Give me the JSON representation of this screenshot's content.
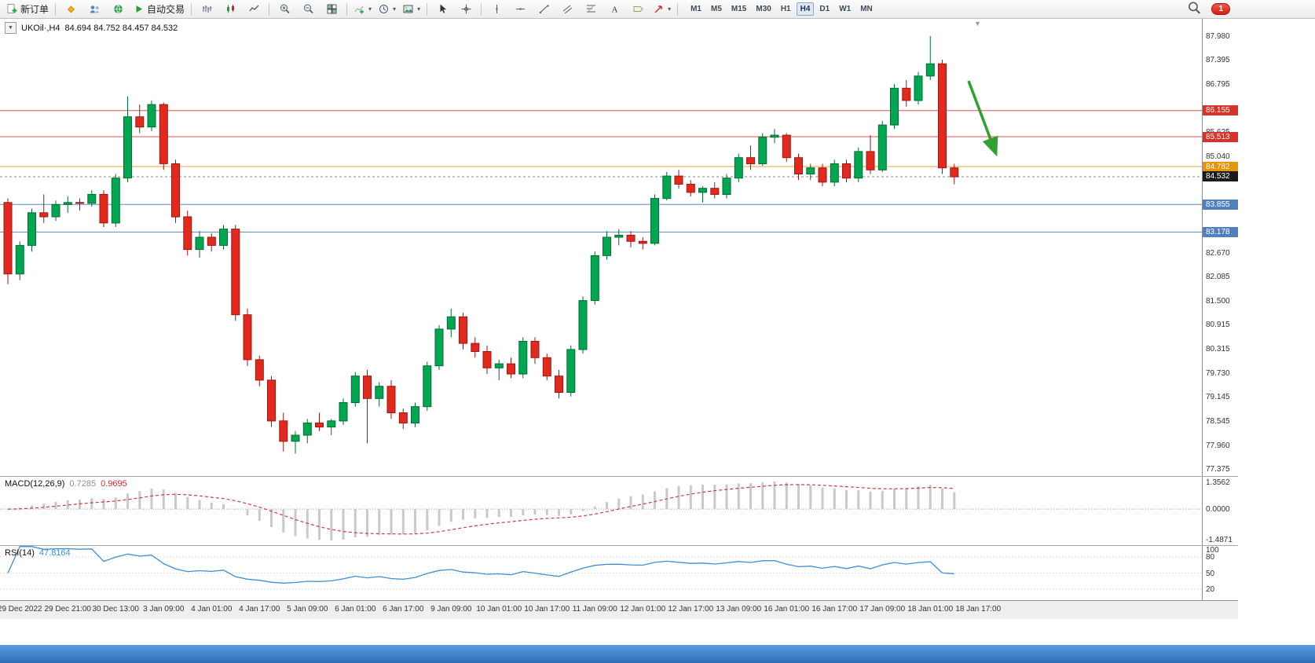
{
  "toolbar": {
    "new_order_label": "新订单",
    "autotrade_label": "自动交易",
    "items": [
      {
        "icon": "new-order",
        "name": "new-order-button",
        "label": "新订单"
      },
      {
        "sep": true
      },
      {
        "icon": "mql-diamond",
        "name": "mql5-button"
      },
      {
        "icon": "profiles",
        "name": "profiles-button"
      },
      {
        "icon": "community",
        "name": "community-button"
      },
      {
        "icon": "play",
        "name": "autotrade-button",
        "label": "自动交易"
      },
      {
        "sep": true
      },
      {
        "icon": "chart-bars",
        "name": "bar-chart-button"
      },
      {
        "icon": "chart-candles",
        "name": "candle-chart-button"
      },
      {
        "icon": "chart-line",
        "name": "line-chart-button"
      },
      {
        "sep": true
      },
      {
        "icon": "zoom-in",
        "name": "zoom-in-button"
      },
      {
        "icon": "zoom-out",
        "name": "zoom-out-button"
      },
      {
        "icon": "tile-windows",
        "name": "tile-windows-button"
      },
      {
        "sep": true
      },
      {
        "icon": "indicators",
        "name": "indicators-button",
        "caret": true
      },
      {
        "icon": "clock",
        "name": "periods-button",
        "caret": true
      },
      {
        "icon": "template",
        "name": "templates-button",
        "caret": true
      },
      {
        "sep": true
      },
      {
        "icon": "cursor",
        "name": "cursor-button"
      },
      {
        "icon": "crosshair",
        "name": "crosshair-button"
      },
      {
        "sep": true
      },
      {
        "icon": "vline",
        "name": "vertical-line-button"
      },
      {
        "icon": "hline",
        "name": "horizontal-line-button"
      },
      {
        "icon": "trendline",
        "name": "trendline-button"
      },
      {
        "icon": "channel",
        "name": "channel-button"
      },
      {
        "icon": "fibo",
        "name": "fibonacci-button"
      },
      {
        "icon": "text",
        "name": "text-button"
      },
      {
        "icon": "label",
        "name": "label-button"
      },
      {
        "icon": "arrow-tool",
        "name": "arrows-button",
        "caret": true
      },
      {
        "sep": true
      }
    ],
    "timeframes": [
      "M1",
      "M5",
      "M15",
      "M30",
      "H1",
      "H4",
      "D1",
      "W1",
      "MN"
    ],
    "active_timeframe": "H4",
    "notification_count": "1"
  },
  "chart": {
    "header": {
      "symbol_period": "UKOil·,H4",
      "ohlc": "84.694 84.752 84.457 84.532"
    },
    "price_axis": {
      "ticks": [
        "87.980",
        "87.395",
        "86.795",
        "85.625",
        "85.040",
        "82.670",
        "82.085",
        "81.500",
        "80.915",
        "80.315",
        "79.730",
        "79.145",
        "78.545",
        "77.960",
        "77.375"
      ],
      "badges": [
        {
          "label": "86.155",
          "bg": "#d8332a"
        },
        {
          "label": "85.513",
          "bg": "#d8332a"
        },
        {
          "label": "84.782",
          "bg": "#e8940a"
        },
        {
          "label": "84.532",
          "bg": "#1a1a1a"
        },
        {
          "label": "83.855",
          "bg": "#4f81bd"
        },
        {
          "label": "83.178",
          "bg": "#4f81bd"
        }
      ]
    },
    "levels": [
      {
        "price": 86.155,
        "color": "#e05050",
        "dash": ""
      },
      {
        "price": 85.513,
        "color": "#e05050",
        "dash": ""
      },
      {
        "price": 84.782,
        "color": "#f0a028",
        "dash": ""
      },
      {
        "price": 83.855,
        "color": "#5b8ac5",
        "dash": ""
      },
      {
        "price": 83.178,
        "color": "#5b8ac5",
        "dash": ""
      },
      {
        "price": 84.532,
        "color": "#8a8a8a",
        "dash": "3,3"
      }
    ],
    "arrow": {
      "color": "#2fa12f",
      "from": [
        1233,
        79
      ],
      "to": [
        1268,
        172
      ]
    },
    "indicators": {
      "macd": {
        "label": "MACD(12,26,9)",
        "value_main": "0.7285",
        "value_signal": "0.9695",
        "axis_top": "1.3562",
        "axis_zero": "0.0000",
        "axis_bottom": "-1.4871"
      },
      "rsi": {
        "label": "RSI(14)",
        "value": "47.8164",
        "axis": [
          "100",
          "80",
          "50",
          "20"
        ],
        "levels": [
          80,
          50,
          20
        ]
      }
    },
    "time_axis": [
      "29 Dec 2022",
      "29 Dec 21:00",
      "30 Dec 13:00",
      "3 Jan 09:00",
      "4 Jan 01:00",
      "4 Jan 17:00",
      "5 Jan 09:00",
      "6 Jan 01:00",
      "6 Jan 17:00",
      "9 Jan 09:00",
      "10 Jan 01:00",
      "10 Jan 17:00",
      "11 Jan 09:00",
      "12 Jan 01:00",
      "12 Jan 17:00",
      "13 Jan 09:00",
      "16 Jan 01:00",
      "16 Jan 17:00",
      "17 Jan 09:00",
      "18 Jan 01:00",
      "18 Jan 17:00"
    ]
  },
  "chart_data": {
    "type": "candlestick",
    "symbol": "UKOil",
    "timeframe": "H4",
    "y_range": [
      77.2,
      88.4
    ],
    "current_price": 84.532,
    "horizontal_levels": [
      86.155,
      85.513,
      84.782,
      83.855,
      83.178
    ],
    "ohlc": [
      [
        83.9,
        84.0,
        81.9,
        82.15
      ],
      [
        82.15,
        82.95,
        82.0,
        82.85
      ],
      [
        82.85,
        83.75,
        82.7,
        83.65
      ],
      [
        83.65,
        84.1,
        83.4,
        83.55
      ],
      [
        83.55,
        83.95,
        83.45,
        83.85
      ],
      [
        83.85,
        84.05,
        83.65,
        83.9
      ],
      [
        83.9,
        84.0,
        83.7,
        83.88
      ],
      [
        83.88,
        84.2,
        83.8,
        84.1
      ],
      [
        84.1,
        84.2,
        83.3,
        83.4
      ],
      [
        83.4,
        84.6,
        83.3,
        84.5
      ],
      [
        84.5,
        86.5,
        84.4,
        86.0
      ],
      [
        86.0,
        86.3,
        85.6,
        85.75
      ],
      [
        85.75,
        86.4,
        85.65,
        86.3
      ],
      [
        86.3,
        86.35,
        84.7,
        84.85
      ],
      [
        84.85,
        84.95,
        83.4,
        83.55
      ],
      [
        83.55,
        83.7,
        82.6,
        82.75
      ],
      [
        82.75,
        83.2,
        82.55,
        83.05
      ],
      [
        83.05,
        83.15,
        82.7,
        82.85
      ],
      [
        82.85,
        83.35,
        82.75,
        83.25
      ],
      [
        83.25,
        83.35,
        81.0,
        81.15
      ],
      [
        81.15,
        81.3,
        79.9,
        80.05
      ],
      [
        80.05,
        80.15,
        79.4,
        79.55
      ],
      [
        79.55,
        79.65,
        78.4,
        78.55
      ],
      [
        78.55,
        78.75,
        77.8,
        78.05
      ],
      [
        78.05,
        78.3,
        77.75,
        78.2
      ],
      [
        78.2,
        78.6,
        78.0,
        78.5
      ],
      [
        78.5,
        78.75,
        78.3,
        78.4
      ],
      [
        78.4,
        78.6,
        78.2,
        78.55
      ],
      [
        78.55,
        79.1,
        78.45,
        79.0
      ],
      [
        79.0,
        79.75,
        78.9,
        79.65
      ],
      [
        79.65,
        79.8,
        78.0,
        79.1
      ],
      [
        79.1,
        79.5,
        78.9,
        79.4
      ],
      [
        79.4,
        79.55,
        78.6,
        78.75
      ],
      [
        78.75,
        78.85,
        78.35,
        78.5
      ],
      [
        78.5,
        79.0,
        78.4,
        78.9
      ],
      [
        78.9,
        80.0,
        78.8,
        79.9
      ],
      [
        79.9,
        80.9,
        79.8,
        80.8
      ],
      [
        80.8,
        81.3,
        80.6,
        81.1
      ],
      [
        81.1,
        81.2,
        80.3,
        80.45
      ],
      [
        80.45,
        80.6,
        80.1,
        80.25
      ],
      [
        80.25,
        80.4,
        79.7,
        79.85
      ],
      [
        79.85,
        80.05,
        79.55,
        79.95
      ],
      [
        79.95,
        80.1,
        79.6,
        79.7
      ],
      [
        79.7,
        80.6,
        79.6,
        80.5
      ],
      [
        80.5,
        80.6,
        79.95,
        80.1
      ],
      [
        80.1,
        80.2,
        79.55,
        79.65
      ],
      [
        79.65,
        79.8,
        79.1,
        79.25
      ],
      [
        79.25,
        80.4,
        79.15,
        80.3
      ],
      [
        80.3,
        81.6,
        80.2,
        81.5
      ],
      [
        81.5,
        82.7,
        81.4,
        82.6
      ],
      [
        82.6,
        83.2,
        82.5,
        83.05
      ],
      [
        83.05,
        83.25,
        82.85,
        83.1
      ],
      [
        83.1,
        83.2,
        82.8,
        82.95
      ],
      [
        82.95,
        83.05,
        82.75,
        82.9
      ],
      [
        82.9,
        84.1,
        82.85,
        84.0
      ],
      [
        84.0,
        84.65,
        83.95,
        84.55
      ],
      [
        84.55,
        84.7,
        84.25,
        84.35
      ],
      [
        84.35,
        84.45,
        84.05,
        84.15
      ],
      [
        84.15,
        84.3,
        83.9,
        84.25
      ],
      [
        84.25,
        84.4,
        84.0,
        84.1
      ],
      [
        84.1,
        84.6,
        84.0,
        84.5
      ],
      [
        84.5,
        85.1,
        84.4,
        85.0
      ],
      [
        85.0,
        85.3,
        84.7,
        84.85
      ],
      [
        84.85,
        85.6,
        84.8,
        85.5
      ],
      [
        85.5,
        85.7,
        85.35,
        85.55
      ],
      [
        85.55,
        85.6,
        84.9,
        85.0
      ],
      [
        85.0,
        85.1,
        84.45,
        84.6
      ],
      [
        84.6,
        84.85,
        84.45,
        84.75
      ],
      [
        84.75,
        84.85,
        84.3,
        84.4
      ],
      [
        84.4,
        84.95,
        84.3,
        84.85
      ],
      [
        84.85,
        84.95,
        84.4,
        84.5
      ],
      [
        84.5,
        85.25,
        84.4,
        85.15
      ],
      [
        85.15,
        85.55,
        84.6,
        84.7
      ],
      [
        84.7,
        85.9,
        84.65,
        85.8
      ],
      [
        85.8,
        86.8,
        85.7,
        86.7
      ],
      [
        86.7,
        86.9,
        86.25,
        86.4
      ],
      [
        86.4,
        87.1,
        86.3,
        87.0
      ],
      [
        87.0,
        87.98,
        86.9,
        87.3
      ],
      [
        87.3,
        87.4,
        84.6,
        84.75
      ],
      [
        84.75,
        84.85,
        84.35,
        84.53
      ]
    ],
    "x_labels": [
      "29 Dec 2022",
      "29 Dec 21:00",
      "30 Dec 13:00",
      "3 Jan 09:00",
      "4 Jan 01:00",
      "4 Jan 17:00",
      "5 Jan 09:00",
      "6 Jan 01:00",
      "6 Jan 17:00",
      "9 Jan 09:00",
      "10 Jan 01:00",
      "10 Jan 17:00",
      "11 Jan 09:00",
      "12 Jan 01:00",
      "12 Jan 17:00",
      "13 Jan 09:00",
      "16 Jan 01:00",
      "16 Jan 17:00",
      "17 Jan 09:00",
      "18 Jan 01:00",
      "18 Jan 17:00"
    ],
    "indicators": {
      "macd": {
        "params": [
          12,
          26,
          9
        ],
        "last_main": 0.7285,
        "last_signal": 0.9695,
        "axis_range": [
          -1.4871,
          1.3562
        ]
      },
      "rsi": {
        "params": [
          14
        ],
        "last": 47.8164,
        "scale": [
          0,
          100
        ]
      }
    },
    "colors": {
      "up": "#00a650",
      "up_border": "#006e34",
      "down": "#e3281e",
      "down_border": "#9e1710"
    }
  }
}
